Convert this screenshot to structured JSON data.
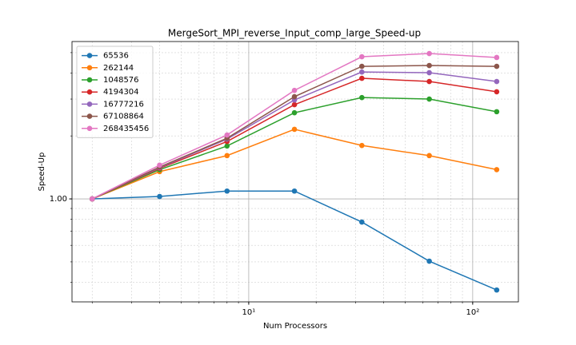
{
  "chart_data": {
    "type": "line",
    "title": "MergeSort_MPI_reverse_Input_comp_large_Speed-up",
    "xlabel": "Num Processors",
    "ylabel": "Speed-Up",
    "x": [
      2,
      4,
      8,
      16,
      32,
      64,
      128
    ],
    "xscale": "log",
    "yscale": "log",
    "xlim": [
      1.625,
      160
    ],
    "ylim": [
      0.322,
      5.65
    ],
    "xticks": [
      {
        "value": 10,
        "label": "10¹"
      },
      {
        "value": 100,
        "label": "10²"
      }
    ],
    "minor_xticks": [
      2,
      3,
      4,
      5,
      6,
      7,
      8,
      9,
      20,
      30,
      40,
      50,
      60,
      70,
      80,
      90
    ],
    "yticks": [
      {
        "value": 1,
        "label": "1.00"
      }
    ],
    "minor_yticks": [
      0.4,
      0.5,
      0.6,
      0.7,
      0.8,
      0.9,
      2,
      3,
      4,
      5
    ],
    "grid": true,
    "legend": "upper left",
    "series": [
      {
        "name": "65536",
        "color": "#1f77b4",
        "values": [
          1.0,
          1.027,
          1.09,
          1.09,
          0.775,
          0.504,
          0.367
        ]
      },
      {
        "name": "262144",
        "color": "#ff7f0e",
        "values": [
          1.0,
          1.35,
          1.61,
          2.15,
          1.8,
          1.61,
          1.38
        ]
      },
      {
        "name": "1048576",
        "color": "#2ca02c",
        "values": [
          1.0,
          1.38,
          1.79,
          2.58,
          3.05,
          3.0,
          2.61
        ]
      },
      {
        "name": "4194304",
        "color": "#d62728",
        "values": [
          1.0,
          1.4,
          1.88,
          2.82,
          3.77,
          3.64,
          3.25
        ]
      },
      {
        "name": "16777216",
        "color": "#9467bd",
        "values": [
          1.0,
          1.41,
          1.93,
          2.97,
          4.04,
          4.01,
          3.64
        ]
      },
      {
        "name": "67108864",
        "color": "#8c564b",
        "values": [
          1.0,
          1.42,
          1.95,
          3.08,
          4.3,
          4.34,
          4.3
        ]
      },
      {
        "name": "268435456",
        "color": "#e377c2",
        "values": [
          1.0,
          1.45,
          2.02,
          3.3,
          4.78,
          4.95,
          4.74
        ]
      }
    ]
  }
}
